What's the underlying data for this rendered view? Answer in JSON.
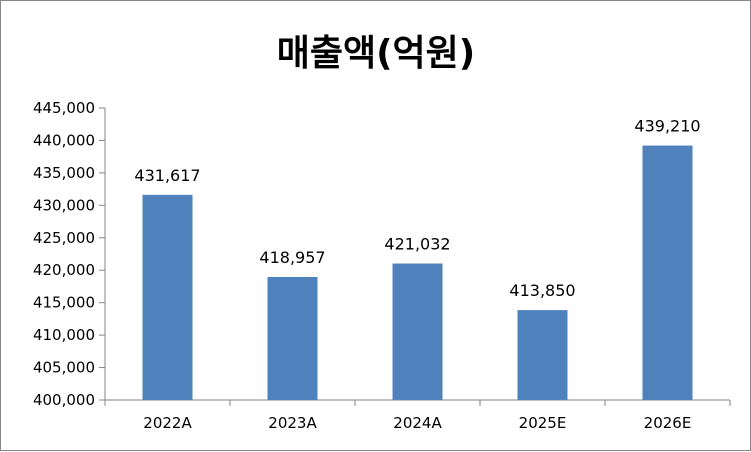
{
  "chart_data": {
    "type": "bar",
    "title": "매출액(억원)",
    "xlabel": "",
    "ylabel": "",
    "categories": [
      "2022A",
      "2023A",
      "2024A",
      "2025E",
      "2026E"
    ],
    "values": [
      431617,
      418957,
      421032,
      413850,
      439210
    ],
    "data_labels": [
      "431,617",
      "418,957",
      "421,032",
      "413,850",
      "439,210"
    ],
    "ylim": [
      400000,
      445000
    ],
    "yticks": [
      400000,
      405000,
      410000,
      415000,
      420000,
      425000,
      430000,
      435000,
      440000,
      445000
    ],
    "ytick_labels": [
      "400,000",
      "405,000",
      "410,000",
      "415,000",
      "420,000",
      "425,000",
      "430,000",
      "435,000",
      "440,000",
      "445,000"
    ],
    "grid": false,
    "legend": "none",
    "colors": {
      "bar": "#4F81BD",
      "axis": "#868686",
      "border": "#868686"
    }
  }
}
